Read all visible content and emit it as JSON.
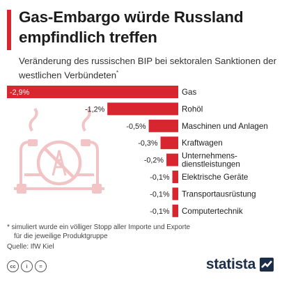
{
  "title": "Gas-Embargo würde Russland empfindlich treffen",
  "subtitle": "Veränderung des russischen BIP bei sektoralen Sanktionen der westlichen Verbündeten",
  "subtitle_marker": "*",
  "colors": {
    "accent": "#d7262f",
    "bar": "#d7262f",
    "illustration": "#f2c4c6",
    "logo": "#1c2d4a"
  },
  "chart_data": {
    "type": "bar",
    "orientation": "horizontal",
    "categories": [
      "Gas",
      "Rohöl",
      "Maschinen und Anlagen",
      "Kraftwagen",
      "Unternehmens-\ndienstleistungen",
      "Elektrische Geräte",
      "Transportausrüstung",
      "Computertechnik"
    ],
    "values": [
      -2.9,
      -1.2,
      -0.5,
      -0.3,
      -0.2,
      -0.1,
      -0.1,
      -0.1
    ],
    "value_labels": [
      "-2,9%",
      "-1,2%",
      "-0,5%",
      "-0,3%",
      "-0,2%",
      "-0,1%",
      "-0,1%",
      "-0,1%"
    ],
    "unit": "%",
    "xlim": [
      -2.9,
      0
    ]
  },
  "footnote": {
    "line1": "* simuliert wurde ein völliger Stopp aller Importe und Exporte",
    "line2": "für die jeweilige Produktgruppe"
  },
  "source": "Quelle: IfW Kiel",
  "license_icons": [
    "creative-commons-icon",
    "attribution-icon",
    "no-derivatives-icon"
  ],
  "license_icon_text": [
    "cc",
    "i",
    "="
  ],
  "brand": "statista"
}
